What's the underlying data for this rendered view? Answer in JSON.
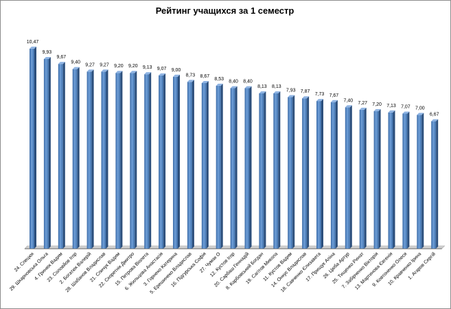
{
  "chart_data": {
    "type": "bar",
    "title": "Рейтинг учащихся  за 1 семестр",
    "xlabel": "",
    "ylabel": "",
    "ylim": [
      0,
      12
    ],
    "grid": false,
    "legend": "none",
    "bar_color": "#4f81bd",
    "categories": [
      "24. Спецюк",
      "29. Шкарновська  Ольга",
      "4.  Гринюк  Вадим",
      "23.  Соловйов  Ігор",
      "2.  Богатюк Валерій",
      "28. Шабанов  Владислав",
      "21.  Спичук  Вадим",
      "22.  Скоретнік  Дмитро",
      "15.  Петрова  Віолета",
      "6.  Жильцова  Анастасія",
      "3.  Горнеко  Катерина",
      "5.  Ерешинеко  Владислав",
      "16.  Підгурська  Софія",
      "27. Чумак  О",
      "12.  Кустов  Ігор",
      "20.  Сарбаш  Геннадій",
      "8.  Карбовський  Богдан",
      "19.  Сагітов  Микола",
      "11.  Кустов  Вадим",
      "14.  Онкус  Владислав",
      "18.  Савченко  Єлизавета",
      "17.  Прищук  Аліна",
      "26.  Цюба  Артур",
      "25.  Тищенко  Ринат",
      "7.  Забірченко  Вікторія",
      "13.  Мартинова  Євгенія",
      "9.  Ковтоненко  Олеся",
      "10.  Кравченко  Ірина",
      "1.  Агаров  Сергій"
    ],
    "values": [
      10.47,
      9.93,
      9.67,
      9.4,
      9.27,
      9.27,
      9.2,
      9.2,
      9.13,
      9.07,
      9.0,
      8.73,
      8.67,
      8.53,
      8.4,
      8.4,
      8.13,
      8.13,
      7.93,
      7.87,
      7.73,
      7.67,
      7.4,
      7.27,
      7.2,
      7.13,
      7.07,
      7.0,
      6.67
    ],
    "data_labels": [
      "10,47",
      "9,93",
      "9,67",
      "9,40",
      "9,27",
      "9,27",
      "9,20",
      "9,20",
      "9,13",
      "9,07",
      "9,00",
      "8,73",
      "8,67",
      "8,53",
      "8,40",
      "8,40",
      "8,13",
      "8,13",
      "7,93",
      "7,87",
      "7,73",
      "7,67",
      "7,40",
      "7,27",
      "7,20",
      "7,13",
      "7,07",
      "7,00",
      "6,67"
    ]
  }
}
